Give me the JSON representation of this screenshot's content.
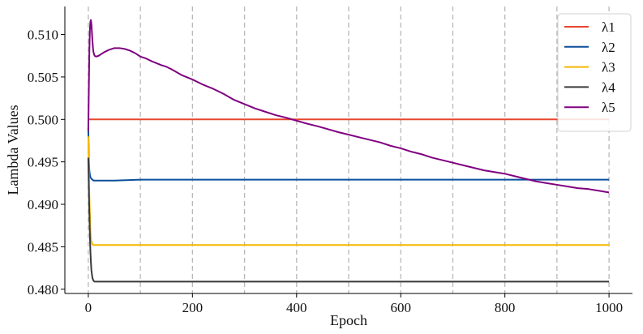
{
  "chart_data": {
    "type": "line",
    "title": "",
    "xlabel": "Epoch",
    "ylabel": "Lambda Values",
    "xlim": [
      -45,
      1045
    ],
    "ylim": [
      0.4795,
      0.5133
    ],
    "xticks": [
      0,
      200,
      400,
      600,
      800,
      1000
    ],
    "xtick_labels": [
      "0",
      "200",
      "400",
      "600",
      "800",
      "1000"
    ],
    "yticks": [
      0.48,
      0.485,
      0.49,
      0.495,
      0.5,
      0.505,
      0.51
    ],
    "ytick_labels": [
      "0.480",
      "0.485",
      "0.490",
      "0.495",
      "0.500",
      "0.505",
      "0.510"
    ],
    "vgrid": [
      0,
      100,
      200,
      300,
      400,
      500,
      600,
      700,
      800,
      900,
      1000
    ],
    "grid": "vertical dashed",
    "legend_position": "top-right",
    "series": [
      {
        "name": "λ1",
        "color": "#e8452c",
        "x": [
          0,
          1000
        ],
        "y": [
          0.5,
          0.5
        ]
      },
      {
        "name": "λ2",
        "color": "#0b4f9c",
        "x": [
          0,
          1,
          2,
          3,
          4,
          6,
          8,
          10,
          15,
          20,
          50,
          100,
          200,
          1000
        ],
        "y": [
          0.499,
          0.4955,
          0.494,
          0.4935,
          0.4932,
          0.493,
          0.4929,
          0.4928,
          0.4928,
          0.4928,
          0.4928,
          0.4929,
          0.4929,
          0.4929
        ]
      },
      {
        "name": "λ3",
        "color": "#f5b800",
        "x": [
          0,
          1,
          2,
          3,
          4,
          5,
          6,
          8,
          10,
          15,
          20,
          50,
          1000
        ],
        "y": [
          0.498,
          0.494,
          0.491,
          0.489,
          0.487,
          0.486,
          0.4856,
          0.4853,
          0.4852,
          0.4852,
          0.4852,
          0.4852,
          0.4852
        ]
      },
      {
        "name": "λ4",
        "color": "#3a3a3a",
        "x": [
          0,
          1,
          2,
          3,
          4,
          5,
          6,
          8,
          10,
          12,
          15,
          20,
          50,
          1000
        ],
        "y": [
          0.4955,
          0.492,
          0.489,
          0.4865,
          0.4845,
          0.4832,
          0.4822,
          0.4813,
          0.481,
          0.4809,
          0.4809,
          0.4809,
          0.4809,
          0.4809
        ]
      },
      {
        "name": "λ5",
        "color": "#800080",
        "x": [
          0,
          1,
          2,
          3,
          4,
          5,
          6,
          7,
          8,
          9,
          10,
          12,
          15,
          20,
          25,
          30,
          40,
          50,
          60,
          70,
          80,
          90,
          100,
          110,
          120,
          140,
          150,
          160,
          180,
          200,
          220,
          240,
          260,
          280,
          300,
          320,
          340,
          360,
          380,
          400,
          420,
          440,
          460,
          480,
          500,
          520,
          540,
          560,
          580,
          600,
          620,
          640,
          660,
          680,
          700,
          720,
          740,
          760,
          780,
          800,
          820,
          840,
          860,
          880,
          900,
          920,
          940,
          960,
          980,
          1000
        ],
        "y": [
          0.4986,
          0.5035,
          0.508,
          0.5105,
          0.5115,
          0.5117,
          0.5112,
          0.5102,
          0.5092,
          0.5084,
          0.5079,
          0.5075,
          0.5074,
          0.5075,
          0.5077,
          0.5079,
          0.5082,
          0.5084,
          0.5084,
          0.5083,
          0.5081,
          0.5078,
          0.5074,
          0.5072,
          0.5069,
          0.5064,
          0.5062,
          0.5059,
          0.5052,
          0.5047,
          0.5041,
          0.5036,
          0.503,
          0.5023,
          0.5018,
          0.5013,
          0.5009,
          0.5005,
          0.5002,
          0.49985,
          0.4995,
          0.4992,
          0.49885,
          0.4985,
          0.4982,
          0.4979,
          0.4976,
          0.4973,
          0.4969,
          0.4966,
          0.4962,
          0.4959,
          0.4955,
          0.4952,
          0.4949,
          0.4946,
          0.4943,
          0.494,
          0.4938,
          0.4936,
          0.4933,
          0.493,
          0.4927,
          0.4925,
          0.4923,
          0.4921,
          0.4919,
          0.4918,
          0.4916,
          0.4914
        ]
      }
    ]
  }
}
